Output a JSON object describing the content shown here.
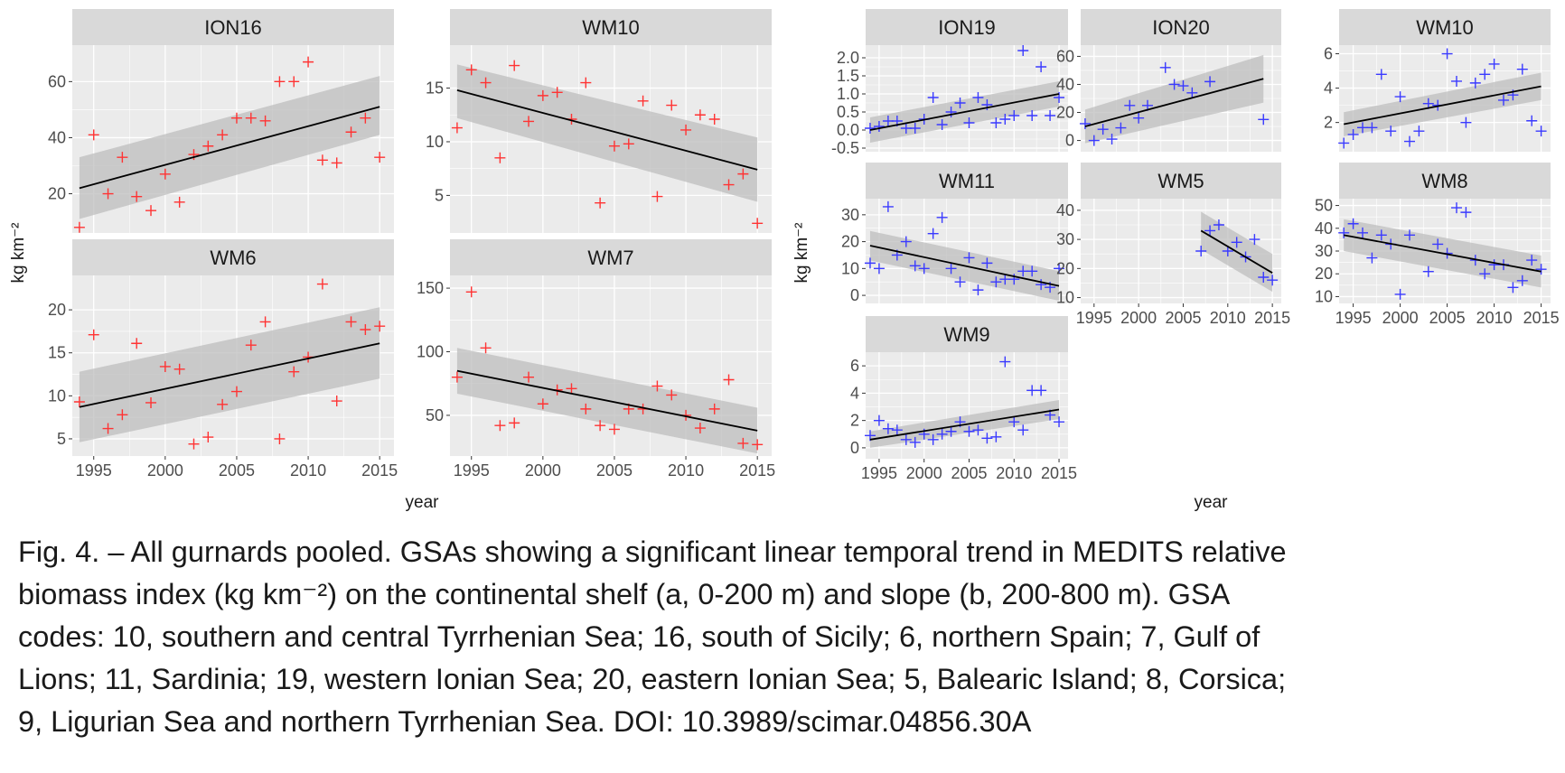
{
  "colors": {
    "panel_bg": "#ebebeb",
    "strip_bg": "#d9d9d9",
    "grid": "#ffffff",
    "ribbon": "#bdbdbd",
    "fit_line": "#000000",
    "shelf_points": "#ff3333",
    "slope_points": "#3a3aff"
  },
  "caption": {
    "lines": [
      "Fig. 4. – All gurnards pooled. GSAs showing a significant linear temporal trend in MEDITS relative",
      "biomass index (kg km⁻²) on the continental shelf (a, 0-200 m) and slope (b, 200-800 m). GSA",
      "codes: 10, southern and central Tyrrhenian Sea; 16, south of Sicily; 6, northern Spain; 7, Gulf of",
      "Lions; 11, Sardinia; 19, western Ionian Sea; 20, eastern Ionian Sea; 5, Balearic Island; 8, Corsica;",
      "9, Ligurian Sea and northern Tyrrhenian Sea. DOI: 10.3989/scimar.04856.30A"
    ]
  },
  "chart_data": [
    {
      "type": "scatter",
      "group": "a",
      "xlabel": "year",
      "ylabel": "kg km⁻²",
      "xlim": [
        1993.5,
        2016
      ],
      "xticks": [
        1995,
        2000,
        2005,
        2010,
        2015
      ],
      "marker": "plus",
      "point_color": "#ff3333",
      "panels": [
        {
          "name": "ION16",
          "ylim": [
            6,
            73
          ],
          "yticks": [
            20,
            40,
            60
          ],
          "x": [
            1994,
            1995,
            1996,
            1997,
            1998,
            1999,
            2000,
            2001,
            2002,
            2003,
            2004,
            2005,
            2006,
            2007,
            2008,
            2009,
            2010,
            2011,
            2012,
            2013,
            2014,
            2015
          ],
          "y": [
            8,
            41,
            20,
            33,
            19,
            14,
            27,
            17,
            34,
            37,
            41,
            47,
            47,
            46,
            60,
            60,
            67,
            32,
            31,
            42,
            47,
            33
          ],
          "fit": [
            22,
            51
          ],
          "ci_low": [
            11,
            41
          ],
          "ci_high": [
            33,
            62
          ]
        },
        {
          "name": "WM10",
          "ylim": [
            1.5,
            19
          ],
          "yticks": [
            5,
            10,
            15
          ],
          "x": [
            1994,
            1995,
            1996,
            1997,
            1998,
            1999,
            2000,
            2001,
            2002,
            2003,
            2004,
            2005,
            2006,
            2007,
            2008,
            2009,
            2010,
            2011,
            2012,
            2013,
            2014,
            2015
          ],
          "y": [
            11.3,
            16.7,
            15.5,
            8.5,
            17.1,
            11.9,
            14.3,
            14.6,
            12.1,
            15.5,
            4.3,
            9.6,
            9.8,
            13.8,
            4.9,
            13.4,
            11.1,
            12.5,
            12.1,
            6,
            7,
            2.4
          ],
          "fit": [
            14.8,
            7.4
          ],
          "ci_low": [
            12.2,
            4.4
          ],
          "ci_high": [
            17.2,
            10.4
          ]
        },
        {
          "name": "WM6",
          "ylim": [
            3,
            24
          ],
          "yticks": [
            5,
            10,
            15,
            20
          ],
          "x": [
            1994,
            1995,
            1996,
            1997,
            1998,
            1999,
            2000,
            2001,
            2002,
            2003,
            2004,
            2005,
            2006,
            2007,
            2008,
            2009,
            2010,
            2011,
            2012,
            2013,
            2014,
            2015
          ],
          "y": [
            9.3,
            17.1,
            6.2,
            7.8,
            16.1,
            9.2,
            13.4,
            13.1,
            4.4,
            5.2,
            9,
            10.5,
            15.9,
            18.6,
            5,
            12.8,
            14.5,
            23,
            9.4,
            18.6,
            17.7,
            18.1
          ],
          "fit": [
            8.7,
            16.1
          ],
          "ci_low": [
            4.6,
            12.0
          ],
          "ci_high": [
            12.8,
            20.3
          ]
        },
        {
          "name": "WM7",
          "ylim": [
            18,
            160
          ],
          "yticks": [
            50,
            100,
            150
          ],
          "x": [
            1994,
            1995,
            1996,
            1997,
            1998,
            1999,
            2000,
            2001,
            2002,
            2003,
            2004,
            2005,
            2006,
            2007,
            2008,
            2009,
            2010,
            2011,
            2012,
            2013,
            2014,
            2015
          ],
          "y": [
            80,
            147,
            103,
            42,
            44,
            80,
            59,
            70,
            71,
            55,
            42,
            39,
            55,
            55,
            73,
            66,
            50,
            40,
            55,
            78,
            28,
            27
          ],
          "fit": [
            85,
            38
          ],
          "ci_low": [
            67,
            20
          ],
          "ci_high": [
            103,
            56
          ]
        }
      ]
    },
    {
      "type": "scatter",
      "group": "b",
      "xlabel": "year",
      "ylabel": "kg km⁻²",
      "xlim": [
        1993.5,
        2016
      ],
      "xticks": [
        1995,
        2000,
        2005,
        2010,
        2015
      ],
      "marker": "plus",
      "point_color": "#3a3aff",
      "panels": [
        {
          "name": "ION19",
          "ylim": [
            -0.6,
            2.35
          ],
          "yticks": [
            -0.5,
            0.0,
            0.5,
            1.0,
            1.5,
            2.0
          ],
          "ytick_labels": [
            "-0.5",
            "0.0",
            "0.5",
            "1.0",
            "1.5",
            "2.0"
          ],
          "x": [
            1994,
            1995,
            1996,
            1997,
            1998,
            1999,
            2000,
            2001,
            2002,
            2003,
            2004,
            2005,
            2006,
            2007,
            2008,
            2009,
            2010,
            2011,
            2012,
            2013,
            2014,
            2015
          ],
          "y": [
            0.05,
            0.1,
            0.25,
            0.25,
            0.05,
            0.05,
            0.3,
            0.9,
            0.15,
            0.5,
            0.75,
            0.2,
            0.9,
            0.7,
            0.2,
            0.3,
            0.4,
            2.2,
            0.4,
            1.75,
            0.4,
            0.9
          ],
          "fit": [
            0.0,
            1.0
          ],
          "ci_low": [
            -0.35,
            0.65
          ],
          "ci_high": [
            0.35,
            1.35
          ]
        },
        {
          "name": "ION20",
          "ylim": [
            -8,
            68
          ],
          "yticks": [
            0,
            20,
            40,
            60
          ],
          "x": [
            1994,
            1995,
            1996,
            1997,
            1998,
            1999,
            2000,
            2001,
            2003,
            2004,
            2005,
            2006,
            2008,
            2014
          ],
          "y": [
            12,
            0,
            8,
            1,
            9,
            25,
            16,
            25,
            52,
            40,
            39,
            34,
            42,
            15
          ],
          "fit": [
            10,
            44
          ],
          "ci_low": [
            -2,
            27
          ],
          "ci_high": [
            22,
            61
          ]
        },
        {
          "name": "WM10",
          "ylim": [
            0.3,
            6.5
          ],
          "yticks": [
            2,
            4,
            6
          ],
          "x": [
            1994,
            1995,
            1996,
            1997,
            1998,
            1999,
            2000,
            2001,
            2002,
            2003,
            2004,
            2005,
            2006,
            2007,
            2008,
            2009,
            2010,
            2011,
            2012,
            2013,
            2014,
            2015
          ],
          "y": [
            0.8,
            1.3,
            1.7,
            1.7,
            4.8,
            1.5,
            3.5,
            0.9,
            1.5,
            3.1,
            3,
            6,
            4.4,
            2,
            4.3,
            4.8,
            5.4,
            3.3,
            3.6,
            5.1,
            2.1,
            1.5
          ],
          "fit": [
            1.9,
            4.1
          ],
          "ci_low": [
            1.2,
            3.3
          ],
          "ci_high": [
            2.6,
            4.9
          ]
        },
        {
          "name": "WM11",
          "ylim": [
            -3,
            36
          ],
          "yticks": [
            0,
            10,
            20,
            30
          ],
          "x": [
            1994,
            1995,
            1996,
            1997,
            1998,
            1999,
            2000,
            2001,
            2002,
            2003,
            2004,
            2005,
            2006,
            2007,
            2008,
            2009,
            2010,
            2011,
            2012,
            2013,
            2014,
            2015
          ],
          "y": [
            12,
            10,
            33,
            15,
            20,
            11,
            10,
            23,
            29,
            10,
            5,
            14,
            2,
            12,
            5,
            6,
            6,
            9,
            9,
            4,
            3,
            10
          ],
          "fit": [
            18.5,
            3.5
          ],
          "ci_low": [
            13,
            -2
          ],
          "ci_high": [
            24,
            9
          ]
        },
        {
          "name": "WM5",
          "ylim": [
            8,
            44
          ],
          "yticks": [
            10,
            20,
            30,
            40
          ],
          "x": [
            2007,
            2008,
            2009,
            2010,
            2011,
            2012,
            2013,
            2014,
            2015
          ],
          "y": [
            26,
            33,
            35,
            26,
            29,
            24,
            30,
            17,
            16
          ],
          "fit_x": [
            2007,
            2015
          ],
          "fit": [
            33,
            18.5
          ],
          "ci_low": [
            26.5,
            12
          ],
          "ci_high": [
            39.5,
            25
          ]
        },
        {
          "name": "WM8",
          "ylim": [
            7,
            53
          ],
          "yticks": [
            10,
            20,
            30,
            40,
            50
          ],
          "x": [
            1994,
            1995,
            1996,
            1997,
            1998,
            1999,
            2000,
            2001,
            2003,
            2004,
            2005,
            2006,
            2007,
            2008,
            2009,
            2010,
            2011,
            2012,
            2013,
            2014,
            2015
          ],
          "y": [
            38,
            42,
            38,
            27,
            37,
            33,
            11,
            37,
            21,
            33,
            29,
            49,
            47,
            26,
            20,
            24,
            24,
            14,
            17,
            26,
            22
          ],
          "fit": [
            37,
            21
          ],
          "ci_low": [
            30,
            14
          ],
          "ci_high": [
            44,
            28
          ]
        },
        {
          "name": "WM9",
          "ylim": [
            -0.8,
            7
          ],
          "yticks": [
            0,
            2,
            4,
            6
          ],
          "x": [
            1994,
            1995,
            1996,
            1997,
            1998,
            1999,
            2000,
            2001,
            2002,
            2003,
            2004,
            2005,
            2006,
            2007,
            2008,
            2009,
            2010,
            2011,
            2012,
            2013,
            2014,
            2015
          ],
          "y": [
            0.9,
            2,
            1.4,
            1.3,
            0.6,
            0.4,
            1,
            0.6,
            1,
            1.2,
            1.9,
            1.2,
            1.3,
            0.7,
            0.8,
            6.3,
            1.9,
            1.3,
            4.2,
            4.2,
            2.4,
            1.9
          ],
          "fit": [
            0.6,
            2.8
          ],
          "ci_low": [
            0.0,
            2.1
          ],
          "ci_high": [
            1.2,
            3.5
          ]
        }
      ]
    }
  ]
}
